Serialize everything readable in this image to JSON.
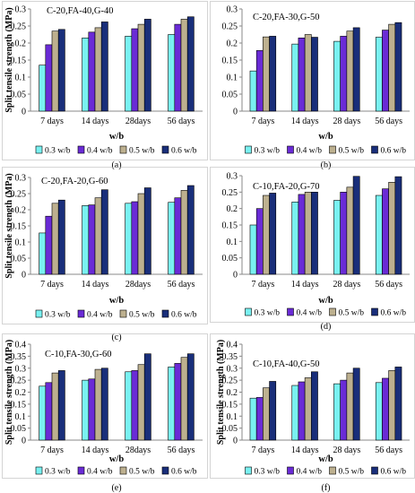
{
  "palette": {
    "series_colors": [
      "#79F1F1",
      "#6A2BD6",
      "#BDB08F",
      "#192E7A"
    ],
    "axis": "#888888",
    "border": "#000000"
  },
  "chart_data": [
    {
      "type": "bar",
      "panel_label": "(a)",
      "title": "C-20,FA-40,G-40",
      "xlabel": "w/b",
      "ylabel": "Split tensile strength (MPa)",
      "categories": [
        "7 days",
        "14 days",
        "28days",
        "56 days"
      ],
      "ylim": [
        0,
        0.3
      ],
      "yticks": [
        0,
        0.05,
        0.1,
        0.15,
        0.2,
        0.25,
        0.3
      ],
      "series": [
        {
          "name": "0.3 w/b",
          "values": [
            0.135,
            0.215,
            0.22,
            0.225
          ]
        },
        {
          "name": "0.4 w/b",
          "values": [
            0.195,
            0.232,
            0.242,
            0.255
          ]
        },
        {
          "name": "0.5 w/b",
          "values": [
            0.235,
            0.245,
            0.255,
            0.27
          ]
        },
        {
          "name": "0.6 w/b",
          "values": [
            0.24,
            0.262,
            0.27,
            0.277
          ]
        }
      ]
    },
    {
      "type": "bar",
      "panel_label": "(b)",
      "title": "C-20,FA-30,G-50",
      "xlabel": "w/b",
      "ylabel": "",
      "categories": [
        "7 days",
        "14 days",
        "28 days",
        "56 days"
      ],
      "ylim": [
        0,
        0.3
      ],
      "yticks": [
        0,
        0.05,
        0.1,
        0.15,
        0.2,
        0.25,
        0.3
      ],
      "series": [
        {
          "name": "0.3 w/b",
          "values": [
            0.118,
            0.197,
            0.205,
            0.217
          ]
        },
        {
          "name": "0.4 w/b",
          "values": [
            0.178,
            0.215,
            0.22,
            0.238
          ]
        },
        {
          "name": "0.5 w/b",
          "values": [
            0.218,
            0.225,
            0.235,
            0.255
          ]
        },
        {
          "name": "0.6 w/b",
          "values": [
            0.22,
            0.217,
            0.245,
            0.26
          ]
        }
      ]
    },
    {
      "type": "bar",
      "panel_label": "(c)",
      "title": "C-20,FA-20,G-60",
      "xlabel": "w/b",
      "ylabel": "Split tensile strength (MPa)",
      "categories": [
        "7 days",
        "14 days",
        "28days",
        "56 days"
      ],
      "ylim": [
        0,
        0.3
      ],
      "yticks": [
        0,
        0.05,
        0.1,
        0.15,
        0.2,
        0.25,
        0.3
      ],
      "series": [
        {
          "name": "0.3 w/b",
          "values": [
            0.128,
            0.213,
            0.22,
            0.223
          ]
        },
        {
          "name": "0.4 w/b",
          "values": [
            0.18,
            0.215,
            0.225,
            0.237
          ]
        },
        {
          "name": "0.5 w/b",
          "values": [
            0.22,
            0.237,
            0.25,
            0.26
          ]
        },
        {
          "name": "0.6 w/b",
          "values": [
            0.23,
            0.262,
            0.268,
            0.275
          ]
        }
      ]
    },
    {
      "type": "bar",
      "panel_label": "(d)",
      "title": "C-10,FA-20,G-70",
      "xlabel": "w/b",
      "ylabel": "",
      "categories": [
        "7 days",
        "14 days",
        "28 days",
        "56 days"
      ],
      "ylim": [
        0,
        0.3
      ],
      "yticks": [
        0,
        0.05,
        0.1,
        0.15,
        0.2,
        0.25,
        0.3
      ],
      "series": [
        {
          "name": "0.3 w/b",
          "values": [
            0.15,
            0.22,
            0.225,
            0.24
          ]
        },
        {
          "name": "0.4 w/b",
          "values": [
            0.2,
            0.243,
            0.25,
            0.26
          ]
        },
        {
          "name": "0.5 w/b",
          "values": [
            0.24,
            0.25,
            0.265,
            0.28
          ]
        },
        {
          "name": "0.6 w/b",
          "values": [
            0.247,
            0.25,
            0.298,
            0.297
          ]
        }
      ]
    },
    {
      "type": "bar",
      "panel_label": "(e)",
      "title": "C-10,FA-30,G-60",
      "xlabel": "w/b",
      "ylabel": "Split tensile strength (MPa)",
      "categories": [
        "7 days",
        "14 days",
        "28days",
        "56 days"
      ],
      "ylim": [
        0,
        0.4
      ],
      "yticks": [
        0,
        0.05,
        0.1,
        0.15,
        0.2,
        0.25,
        0.3,
        0.35,
        0.4
      ],
      "series": [
        {
          "name": "0.3 w/b",
          "values": [
            0.225,
            0.25,
            0.285,
            0.305
          ]
        },
        {
          "name": "0.4 w/b",
          "values": [
            0.24,
            0.255,
            0.29,
            0.32
          ]
        },
        {
          "name": "0.5 w/b",
          "values": [
            0.28,
            0.295,
            0.315,
            0.345
          ]
        },
        {
          "name": "0.6 w/b",
          "values": [
            0.29,
            0.3,
            0.36,
            0.36
          ]
        }
      ]
    },
    {
      "type": "bar",
      "panel_label": "(f)",
      "title": "C-10,FA-40,G-50",
      "xlabel": "w/b",
      "ylabel": "Split tensile strength (MPa)",
      "categories": [
        "7 days",
        "14 days",
        "28 days",
        "56 days"
      ],
      "ylim": [
        0,
        0.4
      ],
      "yticks": [
        0,
        0.05,
        0.1,
        0.15,
        0.2,
        0.25,
        0.3,
        0.35,
        0.4
      ],
      "series": [
        {
          "name": "0.3 w/b",
          "values": [
            0.175,
            0.228,
            0.235,
            0.24
          ]
        },
        {
          "name": "0.4 w/b",
          "values": [
            0.178,
            0.243,
            0.25,
            0.258
          ]
        },
        {
          "name": "0.5 w/b",
          "values": [
            0.218,
            0.26,
            0.28,
            0.29
          ]
        },
        {
          "name": "0.6 w/b",
          "values": [
            0.245,
            0.285,
            0.3,
            0.305
          ]
        }
      ]
    }
  ]
}
